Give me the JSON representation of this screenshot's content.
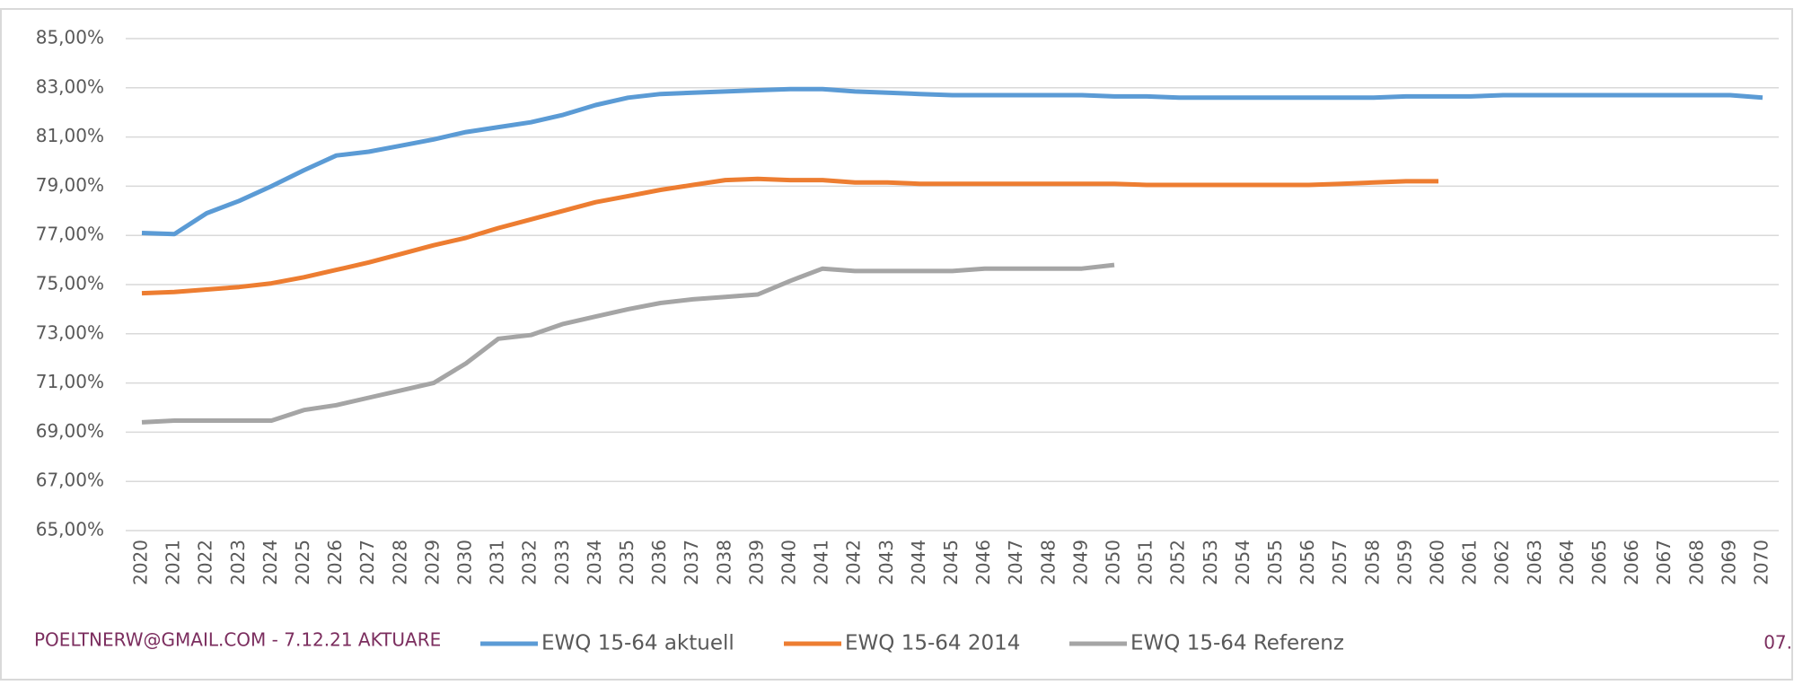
{
  "chart_data": {
    "type": "line",
    "categories": [
      "2020",
      "2021",
      "2022",
      "2023",
      "2024",
      "2025",
      "2026",
      "2027",
      "2028",
      "2029",
      "2030",
      "2031",
      "2032",
      "2033",
      "2034",
      "2035",
      "2036",
      "2037",
      "2038",
      "2039",
      "2040",
      "2041",
      "2042",
      "2043",
      "2044",
      "2045",
      "2046",
      "2047",
      "2048",
      "2049",
      "2050",
      "2051",
      "2052",
      "2053",
      "2054",
      "2055",
      "2056",
      "2057",
      "2058",
      "2059",
      "2060",
      "2061",
      "2062",
      "2063",
      "2064",
      "2065",
      "2066",
      "2067",
      "2068",
      "2069",
      "2070"
    ],
    "series": [
      {
        "name": "EWQ 15-64 aktuell",
        "color": "#5b9bd5",
        "values": [
          77.1,
          77.05,
          77.9,
          78.4,
          79.0,
          79.65,
          80.25,
          80.4,
          80.65,
          80.9,
          81.2,
          81.4,
          81.6,
          81.9,
          82.3,
          82.6,
          82.75,
          82.8,
          82.85,
          82.9,
          82.95,
          82.95,
          82.85,
          82.8,
          82.75,
          82.7,
          82.7,
          82.7,
          82.7,
          82.7,
          82.65,
          82.65,
          82.6,
          82.6,
          82.6,
          82.6,
          82.6,
          82.6,
          82.6,
          82.65,
          82.65,
          82.65,
          82.7,
          82.7,
          82.7,
          82.7,
          82.7,
          82.7,
          82.7,
          82.7,
          82.6
        ]
      },
      {
        "name": "EWQ 15-64 2014",
        "color": "#ed7d31",
        "values": [
          74.65,
          74.7,
          74.8,
          74.9,
          75.05,
          75.3,
          75.6,
          75.9,
          76.25,
          76.6,
          76.9,
          77.3,
          77.65,
          78.0,
          78.35,
          78.6,
          78.85,
          79.05,
          79.25,
          79.3,
          79.25,
          79.25,
          79.15,
          79.15,
          79.1,
          79.1,
          79.1,
          79.1,
          79.1,
          79.1,
          79.1,
          79.05,
          79.05,
          79.05,
          79.05,
          79.05,
          79.05,
          79.1,
          79.15,
          79.2,
          79.2,
          null,
          null,
          null,
          null,
          null,
          null,
          null,
          null,
          null,
          null
        ]
      },
      {
        "name": "EWQ 15-64 Referenz",
        "color": "#a5a5a5",
        "values": [
          69.4,
          69.47,
          69.47,
          69.47,
          69.47,
          69.9,
          70.1,
          70.4,
          70.7,
          71.0,
          71.8,
          72.8,
          72.95,
          73.4,
          73.7,
          74.0,
          74.25,
          74.4,
          74.5,
          74.6,
          75.15,
          75.65,
          75.55,
          75.55,
          75.55,
          75.55,
          75.65,
          75.65,
          75.65,
          75.65,
          75.8,
          null,
          null,
          null,
          null,
          null,
          null,
          null,
          null,
          null,
          null,
          null,
          null,
          null,
          null,
          null,
          null,
          null,
          null,
          null,
          null
        ]
      }
    ],
    "ylim": [
      65,
      85
    ],
    "yticks": [
      {
        "value": 65,
        "label": "65,00%"
      },
      {
        "value": 67,
        "label": "67,00%"
      },
      {
        "value": 69,
        "label": "69,00%"
      },
      {
        "value": 71,
        "label": "71,00%"
      },
      {
        "value": 73,
        "label": "73,00%"
      },
      {
        "value": 75,
        "label": "75,00%"
      },
      {
        "value": 77,
        "label": "77,00%"
      },
      {
        "value": 79,
        "label": "79,00%"
      },
      {
        "value": 81,
        "label": "81,00%"
      },
      {
        "value": 83,
        "label": "83,00%"
      },
      {
        "value": 85,
        "label": "85,00%"
      }
    ],
    "grid": true,
    "legend": "bottom",
    "annotations": [
      "POELTNERW@GMAIL.COM - 7.12.21 AKTUARE",
      "07."
    ]
  }
}
